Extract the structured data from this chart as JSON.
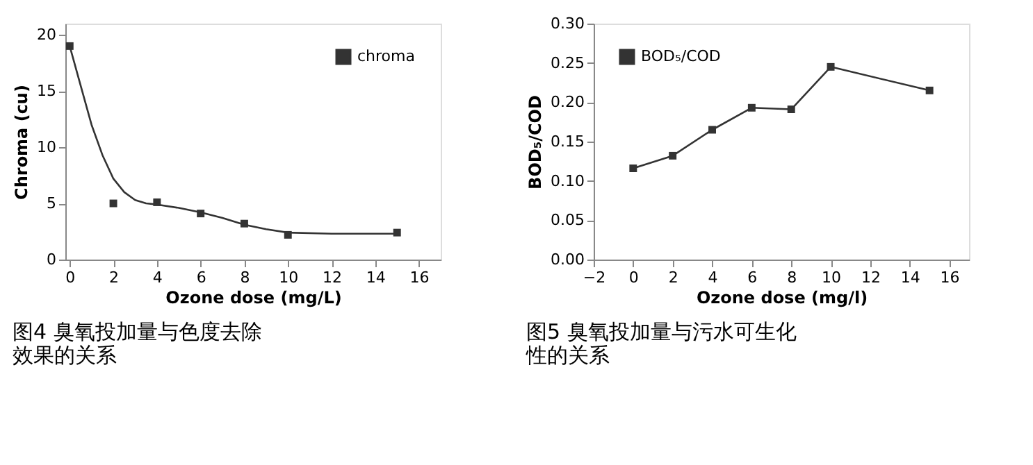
{
  "chart_data": [
    {
      "type": "scatter",
      "title": "图4  臭氧投加量与色度去除效果的关系",
      "xlabel": "Ozone dose (mg/L)",
      "ylabel": "Chroma (cu)",
      "x": [
        0,
        2,
        4,
        6,
        8,
        10,
        15
      ],
      "series": [
        {
          "name": "chroma",
          "color": "#333333",
          "type": "scatter",
          "values": [
            19,
            5,
            5.1,
            4.1,
            3.2,
            2.2,
            2.4
          ]
        },
        {
          "color": "#333333",
          "type": "line",
          "marker": "none",
          "x": [
            0,
            0.5,
            1,
            1.5,
            2,
            2.5,
            3,
            3.5,
            4,
            5,
            6,
            7,
            8,
            9,
            10,
            12,
            13,
            15
          ],
          "values": [
            19,
            15.5,
            12,
            9.3,
            7.2,
            6,
            5.3,
            5,
            4.9,
            4.6,
            4.2,
            3.7,
            3.1,
            2.7,
            2.4,
            2.3,
            2.3,
            2.3
          ]
        }
      ],
      "xlim": [
        -0.2,
        17
      ],
      "xticks": [
        0,
        2,
        4,
        6,
        8,
        10,
        12,
        14,
        16
      ],
      "ylim": [
        0,
        21
      ],
      "yticks": [
        0,
        5,
        10,
        15,
        20
      ],
      "marker": "square",
      "grid": false,
      "legend": "top right"
    },
    {
      "type": "line",
      "title": "图5  臭氧投加量与污水可生化性的关系",
      "xlabel": "Ozone dose (mg/l)",
      "ylabel": "BOD₅/COD",
      "x": [
        0,
        2,
        4,
        6,
        8,
        10,
        15
      ],
      "series": [
        {
          "name": "BOD₅/COD",
          "color": "#333333",
          "values": [
            0.116,
            0.132,
            0.165,
            0.193,
            0.191,
            0.245,
            0.215
          ]
        }
      ],
      "xlim": [
        -2,
        17
      ],
      "xticks": [
        -2,
        0,
        2,
        4,
        6,
        8,
        10,
        12,
        14,
        16
      ],
      "ylim": [
        0,
        0.3
      ],
      "yticks": [
        {
          "value": 0,
          "label": "0.00"
        },
        {
          "value": 0.05,
          "label": "0.05"
        },
        {
          "value": 0.1,
          "label": "0.10"
        },
        {
          "value": 0.15,
          "label": "0.15"
        },
        {
          "value": 0.2,
          "label": "0.20"
        },
        {
          "value": 0.25,
          "label": "0.25"
        },
        {
          "value": 0.3,
          "label": "0.30"
        }
      ],
      "marker": "square",
      "grid": false,
      "legend": "top left"
    }
  ]
}
